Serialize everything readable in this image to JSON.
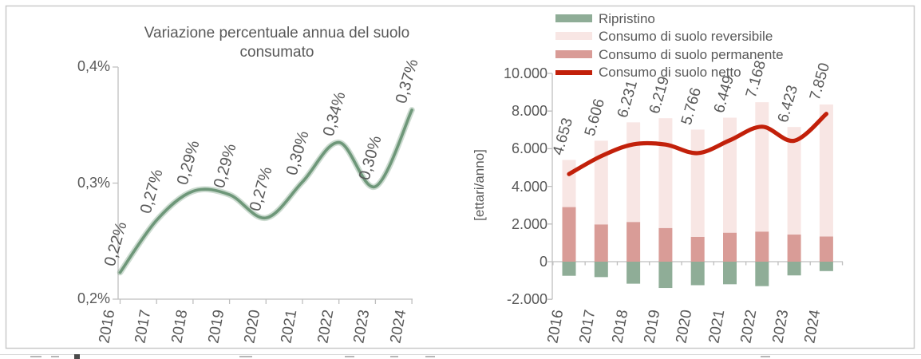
{
  "chart_data": [
    {
      "type": "line",
      "title": "Variazione percentuale annua del suolo consumato",
      "categories": [
        "2016",
        "2017",
        "2018",
        "2019",
        "2020",
        "2021",
        "2022",
        "2023",
        "2024"
      ],
      "values": [
        0.22,
        0.27,
        0.29,
        0.29,
        0.27,
        0.3,
        0.34,
        0.3,
        0.37
      ],
      "plot_values": [
        0.223,
        0.268,
        0.293,
        0.29,
        0.27,
        0.301,
        0.335,
        0.297,
        0.363
      ],
      "point_labels": [
        "0,22%",
        "0,27%",
        "0,29%",
        "0,29%",
        "0,27%",
        "0,30%",
        "0,34%",
        "0,30%",
        "0,37%"
      ],
      "yticks": [
        "0,4%",
        "0,3%",
        "0,2%"
      ],
      "ytick_values": [
        0.4,
        0.3,
        0.2
      ],
      "ylim": [
        0.2,
        0.4
      ],
      "grid": "off",
      "line_color": "#6E9779",
      "text_color": "#595959",
      "axis_color": "#BFBFBF"
    },
    {
      "type": "bar-line-combo",
      "title": "",
      "ylabel": "[ettari/anno]",
      "categories": [
        "2016",
        "2017",
        "2018",
        "2019",
        "2020",
        "2021",
        "2022",
        "2023",
        "2024"
      ],
      "yticks": [
        "10.000",
        "8.000",
        "6.000",
        "4.000",
        "2.000",
        "0",
        "-2.000"
      ],
      "ytick_values": [
        10000,
        8000,
        6000,
        4000,
        2000,
        0,
        -2000
      ],
      "ylim": [
        -2000,
        10000
      ],
      "grid": "off",
      "legend_position": "top-left",
      "bar_stack_note": "permanente bottom + reversibile top stacked above zero; ripristino negative below zero",
      "series": [
        {
          "name": "Ripristino",
          "type": "bar",
          "color": "#8FAD97",
          "values": [
            -750,
            -820,
            -1170,
            -1400,
            -1250,
            -1200,
            -1300,
            -730,
            -500
          ]
        },
        {
          "name": "Consumo di suolo reversibile",
          "type": "bar",
          "color": "#F8E6E4",
          "values": [
            2503,
            4446,
            5291,
            5829,
            5696,
            6109,
            6868,
            5713,
            7010
          ]
        },
        {
          "name": "Consumo di suolo permanente",
          "type": "bar",
          "color": "#D99C97",
          "values": [
            2900,
            1980,
            2110,
            1790,
            1320,
            1540,
            1600,
            1440,
            1340
          ]
        },
        {
          "name": "Consumo di suolo netto",
          "type": "line",
          "color": "#C2200A",
          "values": [
            4653,
            5606,
            6231,
            6219,
            5766,
            6449,
            7168,
            6423,
            7850
          ],
          "point_labels": [
            "4.653",
            "5.606",
            "6.231",
            "6.219",
            "5.766",
            "6.449",
            "7.168",
            "6.423",
            "7.850"
          ]
        }
      ],
      "text_color": "#595959",
      "axis_color": "#BFBFBF"
    }
  ]
}
